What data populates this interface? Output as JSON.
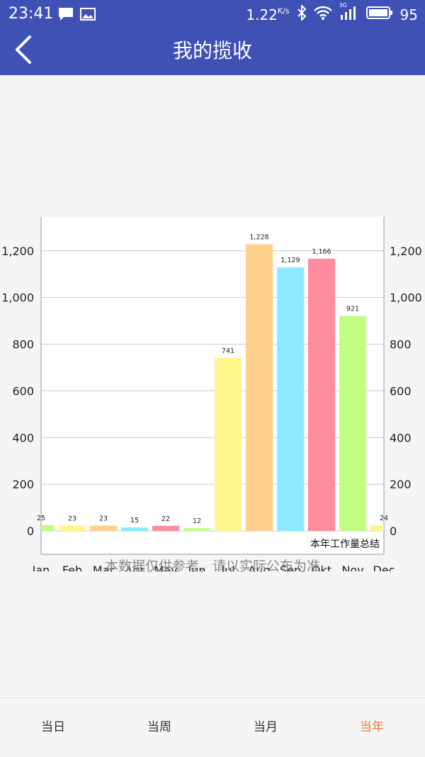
{
  "status_bar": {
    "time": "23:41",
    "net_speed": "1.22",
    "net_unit": "K/s",
    "network_type": "3G",
    "battery": "95",
    "icons": [
      "message-icon",
      "image-icon",
      "bluetooth-icon",
      "wifi-icon",
      "signal-icon",
      "battery-icon"
    ]
  },
  "app_bar": {
    "title": "我的揽收",
    "back_icon": "chevron-left-icon"
  },
  "colors": {
    "primary": "#3f51b5",
    "active_tab": "#e87a3a",
    "bar_palette": [
      "#c1ff84",
      "#fff68c",
      "#ffd08c",
      "#8ce9ff",
      "#ff8c9d"
    ]
  },
  "chart_data": {
    "type": "bar",
    "categories": [
      "Jan",
      "Feb",
      "Mar",
      "Apr",
      "May",
      "Jun",
      "Jul",
      "Aug",
      "Sep",
      "Okt",
      "Nov",
      "Dec"
    ],
    "values": [
      25,
      23,
      23,
      15,
      22,
      12,
      741,
      1228,
      1129,
      1166,
      921,
      24
    ],
    "value_labels": [
      "25",
      "23",
      "23",
      "15",
      "22",
      "12",
      "741",
      "1,228",
      "1,129",
      "1,166",
      "921",
      "24"
    ],
    "bar_colors": [
      "#c1ff84",
      "#fff68c",
      "#ffd08c",
      "#8ce9ff",
      "#ff8c9d",
      "#c1ff84",
      "#fff68c",
      "#ffd08c",
      "#8ce9ff",
      "#ff8c9d",
      "#c1ff84",
      "#fff68c"
    ],
    "y_ticks": [
      0,
      200,
      400,
      600,
      800,
      1000,
      1200
    ],
    "y_tick_labels": [
      "0",
      "200",
      "400",
      "600",
      "800",
      "1,000",
      "1,200"
    ],
    "ylim": [
      -100,
      1345
    ],
    "description": "本年工作量总结",
    "grid": true,
    "dual_y_axis": true
  },
  "disclaimer": "本数据仅供参考，请以实际公布为准",
  "tabs": [
    {
      "label": "当日",
      "active": false
    },
    {
      "label": "当周",
      "active": false
    },
    {
      "label": "当月",
      "active": false
    },
    {
      "label": "当年",
      "active": true
    }
  ]
}
